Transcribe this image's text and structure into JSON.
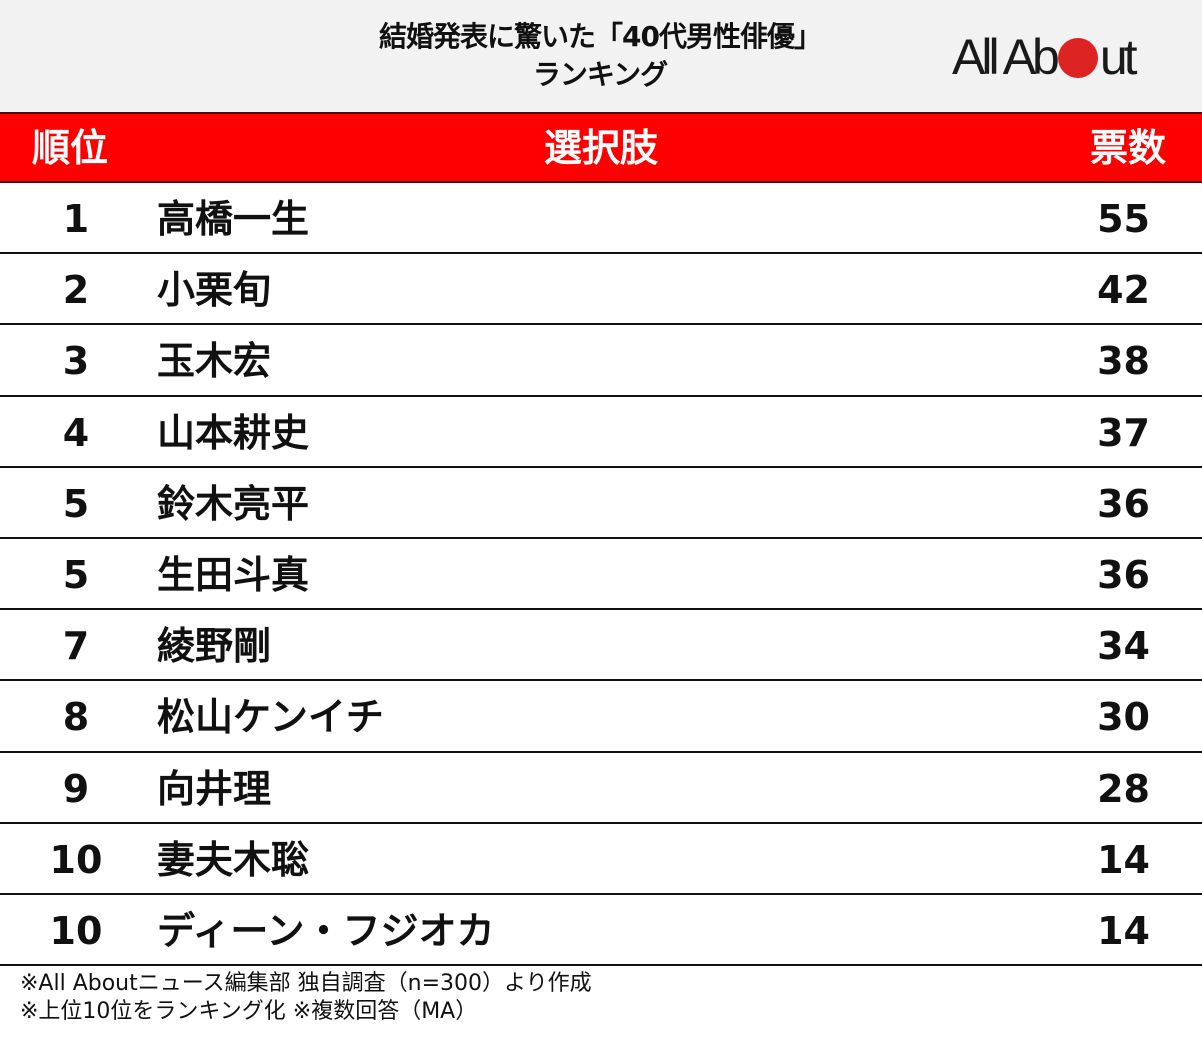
{
  "header": {
    "title_line1": "結婚発表に驚いた「40代男性俳優」",
    "title_line2": "ランキング",
    "logo_text_left": "All Ab",
    "logo_text_right": "ut",
    "logo_dot_color": "#dd2222"
  },
  "table": {
    "columns": [
      "順位",
      "選択肢",
      "票数"
    ],
    "header_color": "#ff0000",
    "rows": [
      {
        "rank": "1",
        "name": "高橋一生",
        "votes": "55"
      },
      {
        "rank": "2",
        "name": "小栗旬",
        "votes": "42"
      },
      {
        "rank": "3",
        "name": "玉木宏",
        "votes": "38"
      },
      {
        "rank": "4",
        "name": "山本耕史",
        "votes": "37"
      },
      {
        "rank": "5",
        "name": "鈴木亮平",
        "votes": "36"
      },
      {
        "rank": "5",
        "name": "生田斗真",
        "votes": "36"
      },
      {
        "rank": "7",
        "name": "綾野剛",
        "votes": "34"
      },
      {
        "rank": "8",
        "name": "松山ケンイチ",
        "votes": "30"
      },
      {
        "rank": "9",
        "name": "向井理",
        "votes": "28"
      },
      {
        "rank": "10",
        "name": "妻夫木聡",
        "votes": "14"
      },
      {
        "rank": "10",
        "name": "ディーン・フジオカ",
        "votes": "14"
      }
    ]
  },
  "footer": {
    "note1": "※All Aboutニュース編集部 独自調査（n=300）より作成",
    "note2": "※上位10位をランキング化 ※複数回答（MA）"
  },
  "chart_data": {
    "type": "table",
    "title": "結婚発表に驚いた「40代男性俳優」ランキング",
    "columns": [
      "順位",
      "選択肢",
      "票数"
    ],
    "categories": [
      "高橋一生",
      "小栗旬",
      "玉木宏",
      "山本耕史",
      "鈴木亮平",
      "生田斗真",
      "綾野剛",
      "松山ケンイチ",
      "向井理",
      "妻夫木聡",
      "ディーン・フジオカ"
    ],
    "ranks": [
      1,
      2,
      3,
      4,
      5,
      5,
      7,
      8,
      9,
      10,
      10
    ],
    "values": [
      55,
      42,
      38,
      37,
      36,
      36,
      34,
      30,
      28,
      14,
      14
    ],
    "notes": [
      "※All Aboutニュース編集部 独自調査（n=300）より作成",
      "※上位10位をランキング化 ※複数回答（MA）"
    ]
  }
}
